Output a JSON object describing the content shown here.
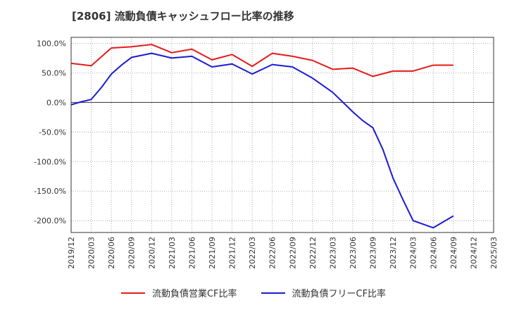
{
  "chart_data": {
    "type": "line",
    "title": "[2806]  流動負債キャッシュフロー比率の推移",
    "xlabel": "",
    "ylabel": "",
    "ylim": [
      -220,
      110
    ],
    "yticks": [
      100,
      50,
      0,
      -50,
      -100,
      -150,
      -200
    ],
    "ytick_labels": [
      "100.0%",
      "50.0%",
      "0.0%",
      "-50.0%",
      "-100.0%",
      "-150.0%",
      "-200.0%"
    ],
    "xtick_labels": [
      "2019/12",
      "2020/03",
      "2020/06",
      "2020/09",
      "2020/12",
      "2021/03",
      "2021/06",
      "2021/09",
      "2021/12",
      "2022/03",
      "2022/06",
      "2022/09",
      "2022/12",
      "2023/03",
      "2023/06",
      "2023/09",
      "2023/12",
      "2024/03",
      "2024/06",
      "2024/09",
      "2024/12",
      "2025/03"
    ],
    "legend_position": "bottom",
    "grid": true,
    "series": [
      {
        "name": "流動負債営業CF比率",
        "color": "#e31b1b",
        "x": [
          0,
          1,
          2,
          3,
          4,
          5,
          6,
          7,
          8,
          9,
          10,
          11,
          12,
          13,
          14,
          15,
          16,
          17,
          18,
          19
        ],
        "values": [
          66,
          62,
          92,
          94,
          98,
          84,
          90,
          72,
          81,
          61,
          83,
          78,
          71,
          56,
          58,
          44,
          53,
          53,
          63,
          63
        ]
      },
      {
        "name": "流動負債フリーCF比率",
        "color": "#1b1bd6",
        "x": [
          0,
          0.5,
          1,
          1.5,
          2,
          2.5,
          3,
          4,
          5,
          6,
          7,
          8,
          9,
          10,
          11,
          12,
          13,
          14,
          14.5,
          15,
          15.5,
          16,
          16.5,
          17,
          18,
          19
        ],
        "values": [
          -4,
          1,
          5,
          25,
          48,
          63,
          76,
          83,
          75,
          78,
          60,
          65,
          48,
          64,
          60,
          41,
          17,
          -16,
          -31,
          -43,
          -80,
          -128,
          -165,
          -200,
          -212,
          -192
        ]
      }
    ]
  }
}
